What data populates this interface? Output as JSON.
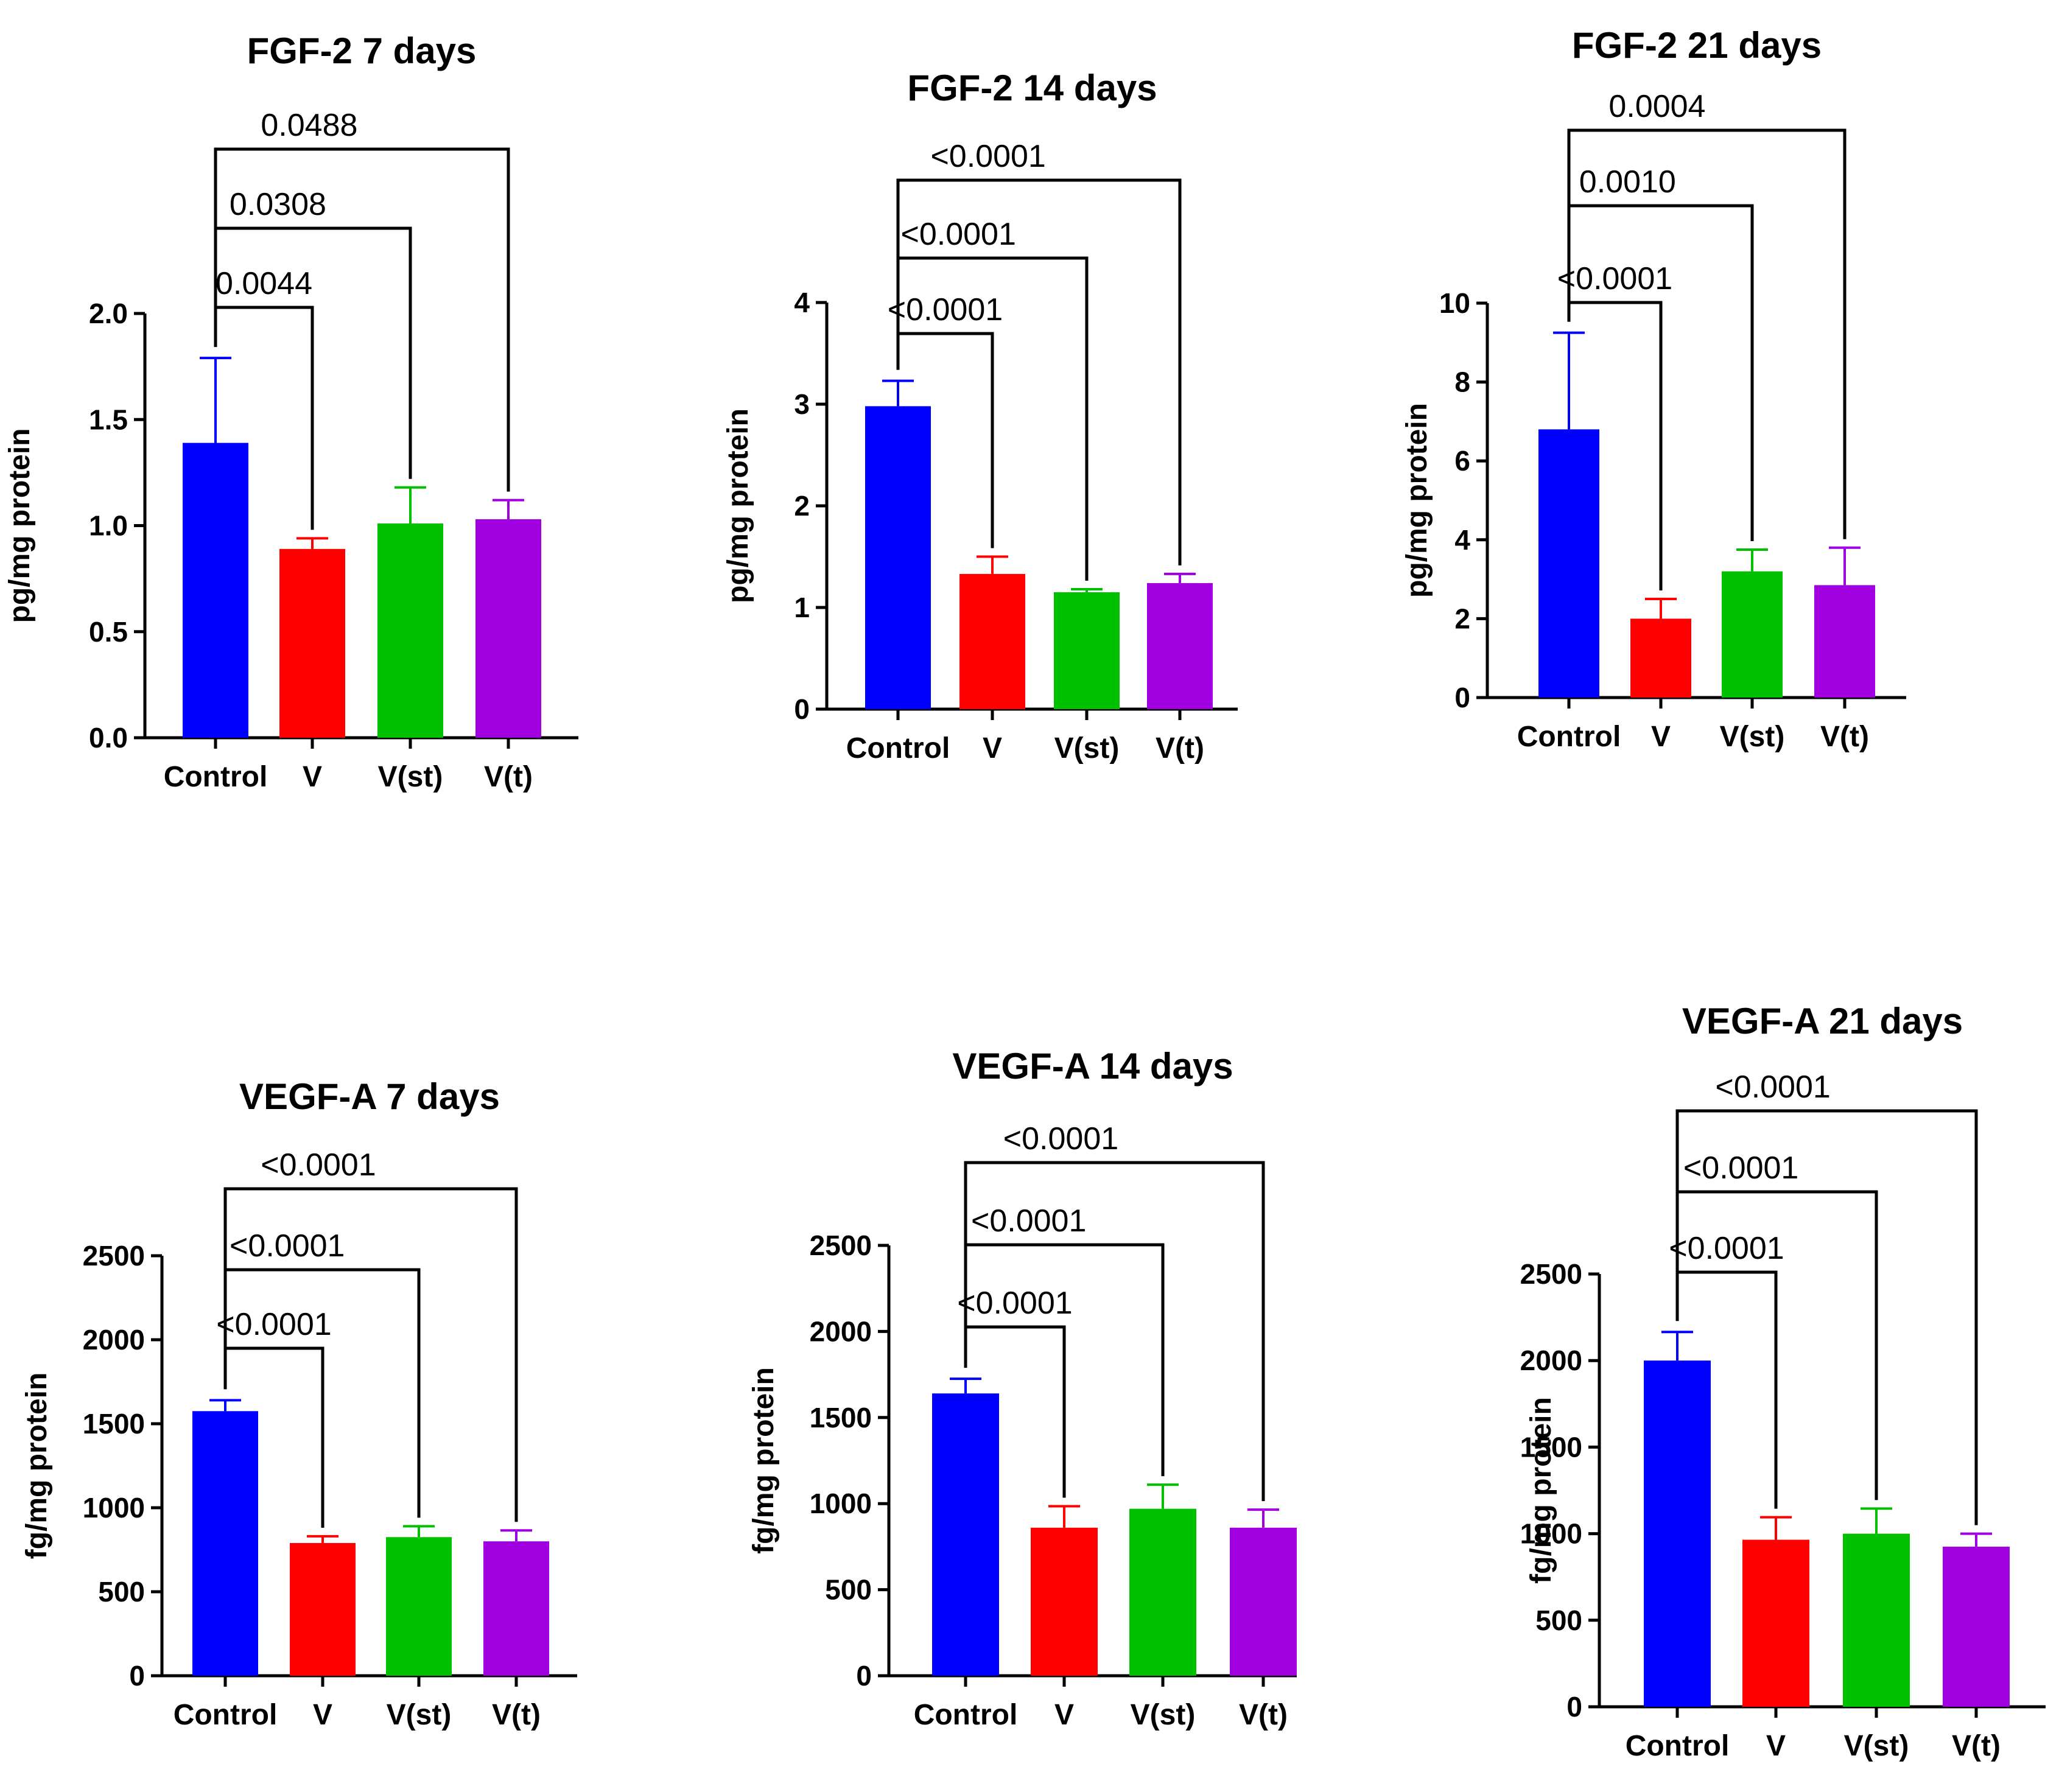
{
  "chart_data": [
    {
      "type": "bar",
      "title": "FGF-2 7 days",
      "ylabel": "pg/mg protein",
      "categories": [
        "Control",
        "V",
        "V(st)",
        "V(t)"
      ],
      "values": [
        1.39,
        0.89,
        1.01,
        1.03
      ],
      "errors": [
        0.4,
        0.05,
        0.17,
        0.09
      ],
      "colors": [
        "#0000ff",
        "#ff0000",
        "#00c000",
        "#a000e0"
      ],
      "ylim": [
        0,
        2.0
      ],
      "yticks": [
        "0.0",
        "0.5",
        "1.0",
        "1.5",
        "2.0"
      ],
      "ytick_values": [
        0,
        0.5,
        1.0,
        1.5,
        2.0
      ],
      "comparisons": [
        {
          "from": 0,
          "to": 1,
          "label": "0.0044"
        },
        {
          "from": 0,
          "to": 2,
          "label": "0.0308"
        },
        {
          "from": 0,
          "to": 3,
          "label": "0.0488"
        }
      ]
    },
    {
      "type": "bar",
      "title": "FGF-2 14 days",
      "ylabel": "pg/mg protein",
      "categories": [
        "Control",
        "V",
        "V(st)",
        "V(t)"
      ],
      "values": [
        2.98,
        1.33,
        1.15,
        1.24
      ],
      "errors": [
        0.25,
        0.17,
        0.03,
        0.09
      ],
      "colors": [
        "#0000ff",
        "#ff0000",
        "#00c000",
        "#a000e0"
      ],
      "ylim": [
        0,
        4
      ],
      "yticks": [
        "0",
        "1",
        "2",
        "3",
        "4"
      ],
      "ytick_values": [
        0,
        1,
        2,
        3,
        4
      ],
      "comparisons": [
        {
          "from": 0,
          "to": 1,
          "label": "<0.0001"
        },
        {
          "from": 0,
          "to": 2,
          "label": "<0.0001"
        },
        {
          "from": 0,
          "to": 3,
          "label": "<0.0001"
        }
      ]
    },
    {
      "type": "bar",
      "title": "FGF-2 21 days",
      "ylabel": "pg/mg protein",
      "categories": [
        "Control",
        "V",
        "V(st)",
        "V(t)"
      ],
      "values": [
        6.8,
        2.0,
        3.2,
        2.85
      ],
      "errors": [
        2.45,
        0.5,
        0.55,
        0.95
      ],
      "colors": [
        "#0000ff",
        "#ff0000",
        "#00c000",
        "#a000e0"
      ],
      "ylim": [
        0,
        10
      ],
      "yticks": [
        "0",
        "2",
        "4",
        "6",
        "8",
        "10"
      ],
      "ytick_values": [
        0,
        2,
        4,
        6,
        8,
        10
      ],
      "comparisons": [
        {
          "from": 0,
          "to": 1,
          "label": "<0.0001"
        },
        {
          "from": 0,
          "to": 2,
          "label": "0.0010"
        },
        {
          "from": 0,
          "to": 3,
          "label": "0.0004"
        }
      ]
    },
    {
      "type": "bar",
      "title": "VEGF-A 7 days",
      "ylabel": "fg/mg protein",
      "categories": [
        "Control",
        "V",
        "V(st)",
        "V(t)"
      ],
      "values": [
        1575,
        790,
        825,
        800
      ],
      "errors": [
        65,
        40,
        65,
        65
      ],
      "colors": [
        "#0000ff",
        "#ff0000",
        "#00c000",
        "#a000e0"
      ],
      "ylim": [
        0,
        2500
      ],
      "yticks": [
        "0",
        "500",
        "1000",
        "1500",
        "2000",
        "2500"
      ],
      "ytick_values": [
        0,
        500,
        1000,
        1500,
        2000,
        2500
      ],
      "comparisons": [
        {
          "from": 0,
          "to": 1,
          "label": "<0.0001"
        },
        {
          "from": 0,
          "to": 2,
          "label": "<0.0001"
        },
        {
          "from": 0,
          "to": 3,
          "label": "<0.0001"
        }
      ]
    },
    {
      "type": "bar",
      "title": "VEGF-A 14 days",
      "ylabel": "fg/mg protein",
      "categories": [
        "Control",
        "V",
        "V(st)",
        "V(t)"
      ],
      "values": [
        1640,
        860,
        970,
        860
      ],
      "errors": [
        85,
        125,
        140,
        105
      ],
      "colors": [
        "#0000ff",
        "#ff0000",
        "#00c000",
        "#a000e0"
      ],
      "ylim": [
        0,
        2500
      ],
      "yticks": [
        "0",
        "500",
        "1000",
        "1500",
        "2000",
        "2500"
      ],
      "ytick_values": [
        0,
        500,
        1000,
        1500,
        2000,
        2500
      ],
      "comparisons": [
        {
          "from": 0,
          "to": 1,
          "label": "<0.0001"
        },
        {
          "from": 0,
          "to": 2,
          "label": "<0.0001"
        },
        {
          "from": 0,
          "to": 3,
          "label": "<0.0001"
        }
      ]
    },
    {
      "type": "bar",
      "title": "VEGF-A 21 days",
      "ylabel": "fg/mg protein",
      "categories": [
        "Control",
        "V",
        "V(st)",
        "V(t)"
      ],
      "values": [
        2000,
        965,
        1000,
        925
      ],
      "errors": [
        165,
        130,
        145,
        75
      ],
      "colors": [
        "#0000ff",
        "#ff0000",
        "#00c000",
        "#a000e0"
      ],
      "ylim": [
        0,
        2500
      ],
      "yticks": [
        "0",
        "500",
        "1000",
        "1500",
        "2000",
        "2500"
      ],
      "ytick_values": [
        0,
        500,
        1000,
        1500,
        2000,
        2500
      ],
      "comparisons": [
        {
          "from": 0,
          "to": 1,
          "label": "<0.0001"
        },
        {
          "from": 0,
          "to": 2,
          "label": "<0.0001"
        },
        {
          "from": 0,
          "to": 3,
          "label": "<0.0001"
        }
      ]
    }
  ]
}
